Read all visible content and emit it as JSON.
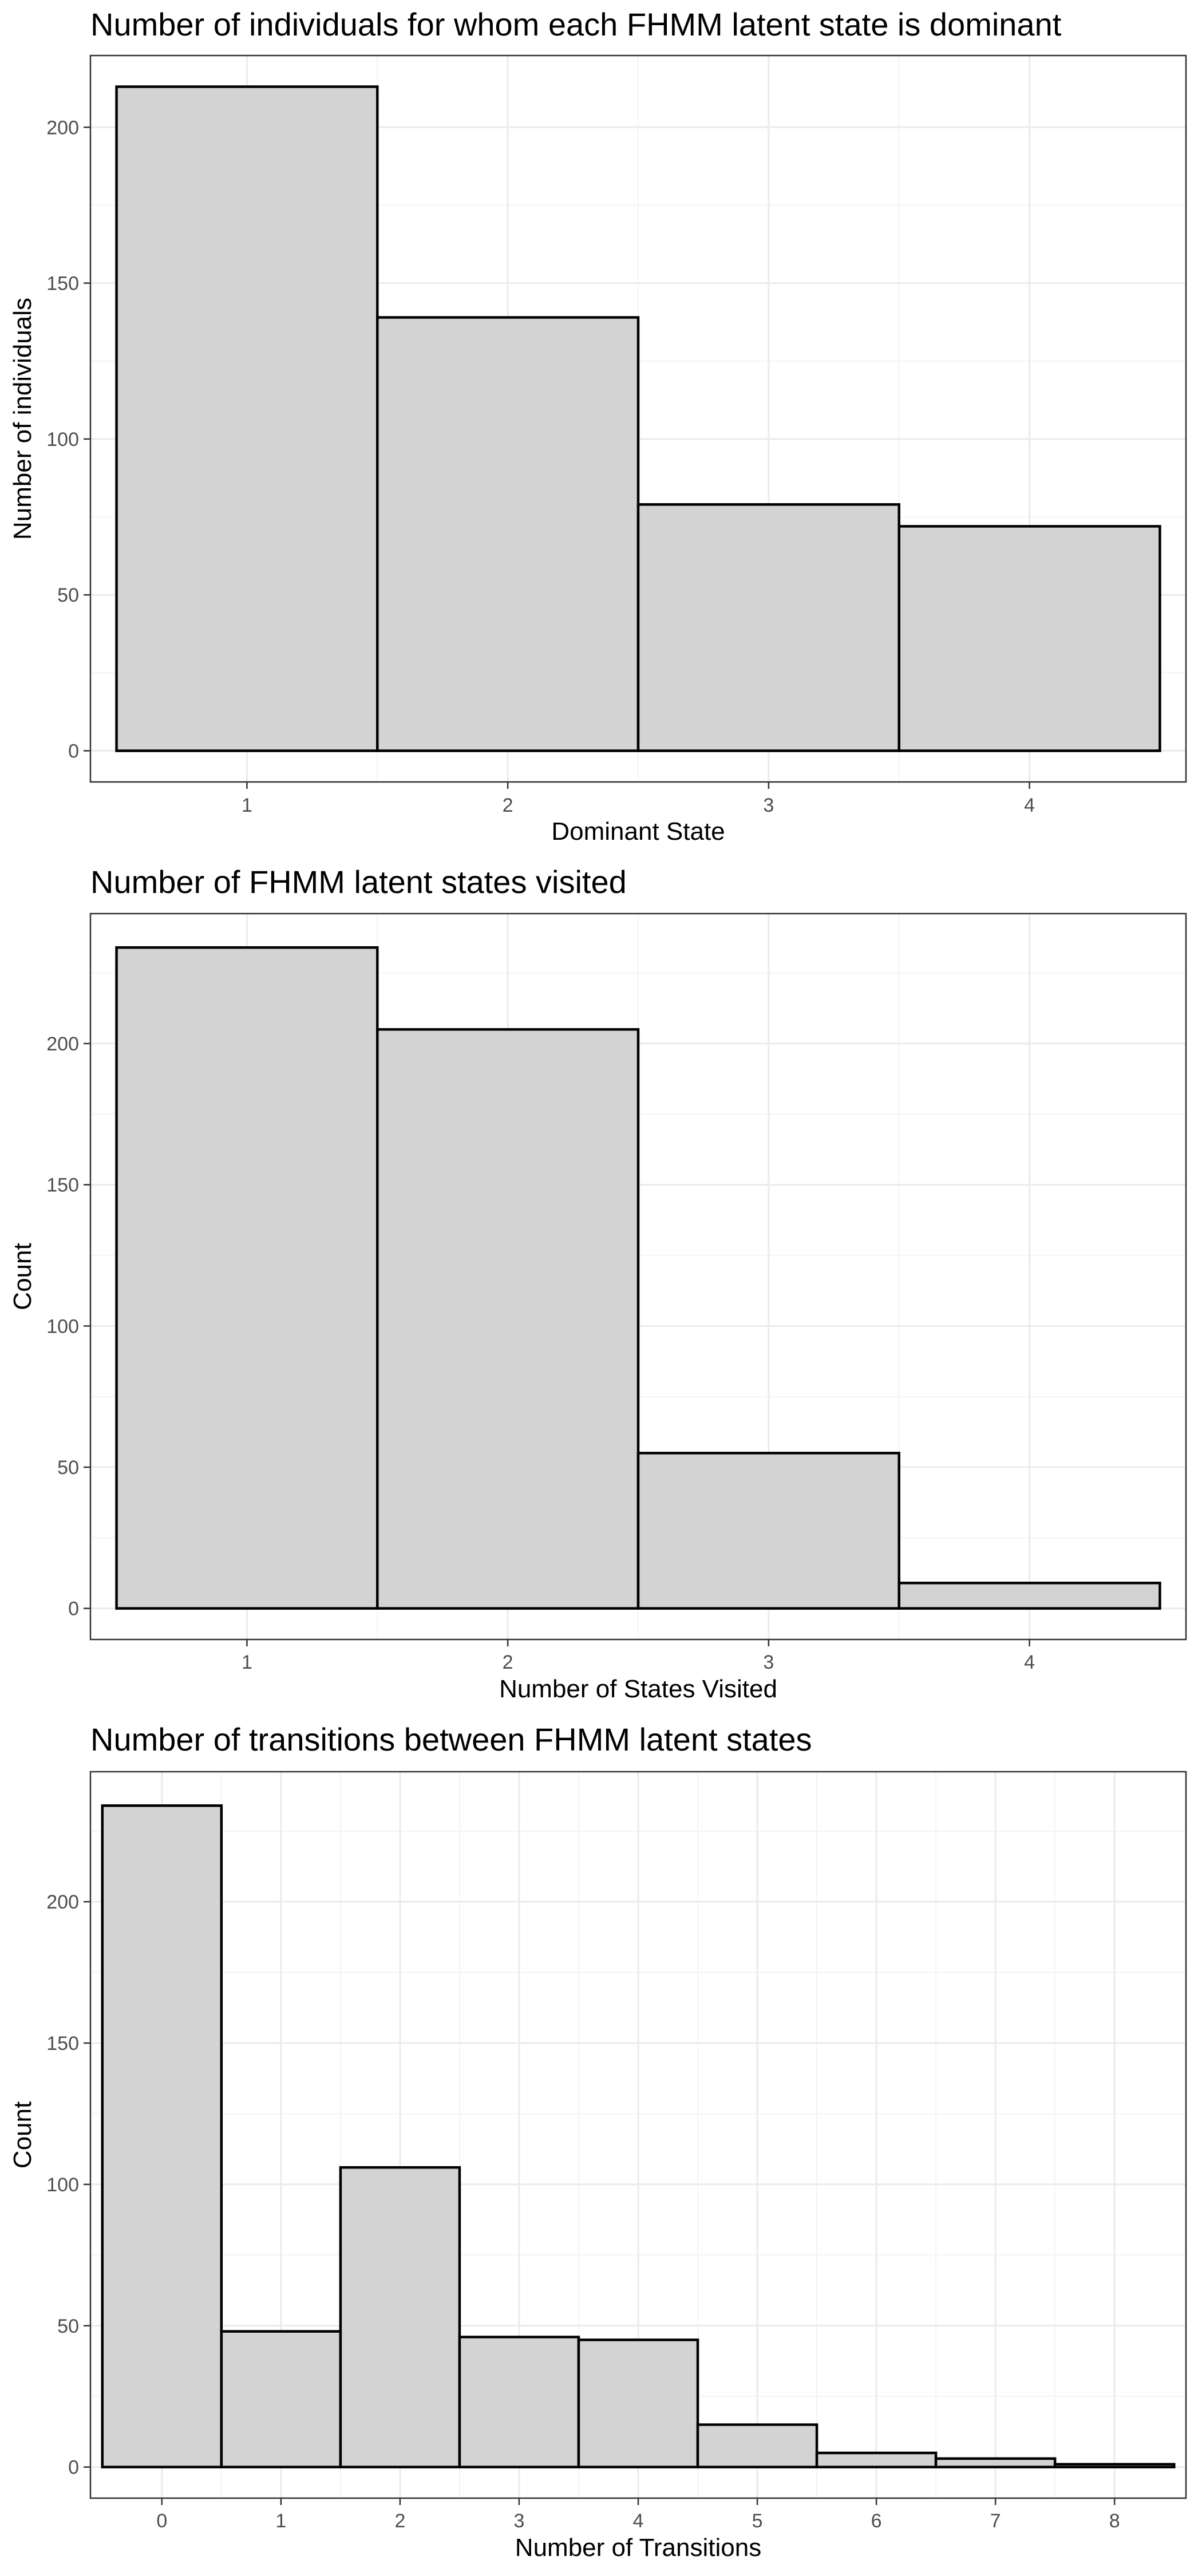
{
  "chart_data": [
    {
      "type": "bar",
      "title": "Number of individuals for whom each FHMM latent state is dominant",
      "xlabel": "Dominant State",
      "ylabel": "Number of individuals",
      "categories": [
        "1",
        "2",
        "3",
        "4"
      ],
      "values": [
        213,
        139,
        79,
        72
      ],
      "ylim": [
        -10,
        223
      ],
      "yticks": [
        0,
        50,
        100,
        150,
        200
      ],
      "grid": true,
      "bar_fill": "#d3d3d3",
      "bar_outline": "#000000"
    },
    {
      "type": "bar",
      "title": "Number of FHMM latent states visited",
      "xlabel": "Number of States Visited",
      "ylabel": "Count",
      "categories": [
        "1",
        "2",
        "3",
        "4"
      ],
      "values": [
        234,
        205,
        55,
        9
      ],
      "ylim": [
        -11,
        246
      ],
      "yticks": [
        0,
        50,
        100,
        150,
        200
      ],
      "grid": true,
      "bar_fill": "#d3d3d3",
      "bar_outline": "#000000"
    },
    {
      "type": "bar",
      "title": "Number of transitions between FHMM latent states",
      "xlabel": "Number of Transitions",
      "ylabel": "Count",
      "categories": [
        "0",
        "1",
        "2",
        "3",
        "4",
        "5",
        "6",
        "7",
        "8"
      ],
      "values": [
        234,
        48,
        106,
        46,
        45,
        15,
        5,
        3,
        1
      ],
      "ylim": [
        -11,
        246
      ],
      "yticks": [
        0,
        50,
        100,
        150,
        200
      ],
      "grid": true,
      "bar_fill": "#d3d3d3",
      "bar_outline": "#000000"
    }
  ]
}
